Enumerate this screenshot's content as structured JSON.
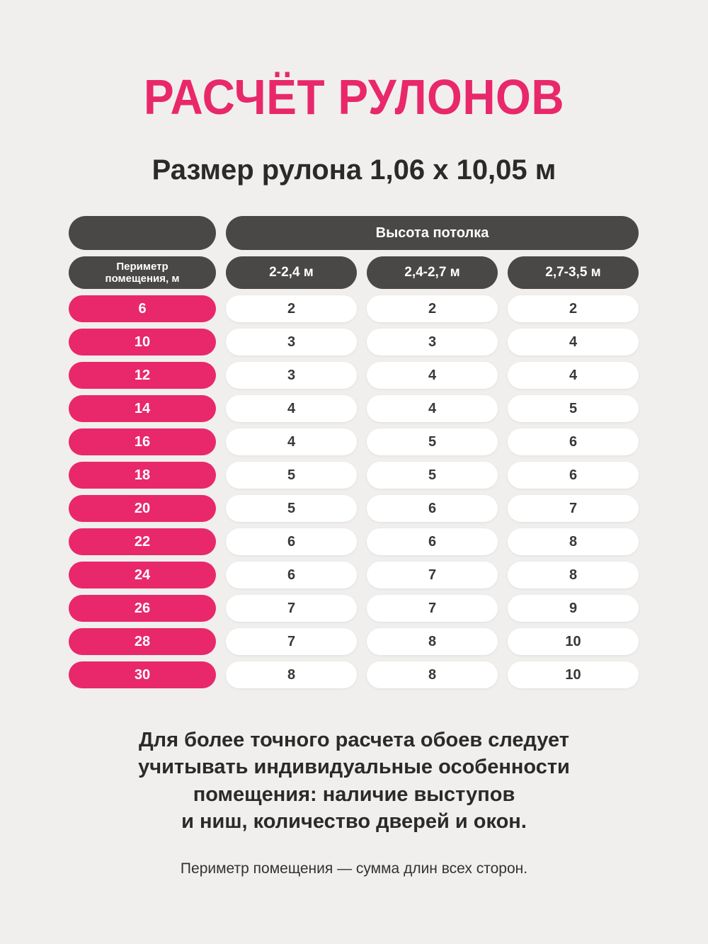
{
  "page": {
    "title": "РАСЧЁТ РУЛОНОВ",
    "subtitle": "Размер рулона 1,06 х 10,05 м"
  },
  "table": {
    "ceiling_header": "Высота потолка",
    "perimeter_header_lines": [
      "Периметр",
      "помещения, м"
    ],
    "column_headers": [
      "2-2,4 м",
      "2,4-2,7 м",
      "2,7-3,5 м"
    ],
    "rows": [
      {
        "perimeter": "6",
        "values": [
          "2",
          "2",
          "2"
        ]
      },
      {
        "perimeter": "10",
        "values": [
          "3",
          "3",
          "4"
        ]
      },
      {
        "perimeter": "12",
        "values": [
          "3",
          "4",
          "4"
        ]
      },
      {
        "perimeter": "14",
        "values": [
          "4",
          "4",
          "5"
        ]
      },
      {
        "perimeter": "16",
        "values": [
          "4",
          "5",
          "6"
        ]
      },
      {
        "perimeter": "18",
        "values": [
          "5",
          "5",
          "6"
        ]
      },
      {
        "perimeter": "20",
        "values": [
          "5",
          "6",
          "7"
        ]
      },
      {
        "perimeter": "22",
        "values": [
          "6",
          "6",
          "8"
        ]
      },
      {
        "perimeter": "24",
        "values": [
          "6",
          "7",
          "8"
        ]
      },
      {
        "perimeter": "26",
        "values": [
          "7",
          "7",
          "9"
        ]
      },
      {
        "perimeter": "28",
        "values": [
          "7",
          "8",
          "10"
        ]
      },
      {
        "perimeter": "30",
        "values": [
          "8",
          "8",
          "10"
        ]
      }
    ]
  },
  "footer": {
    "note_lines": [
      "Для более точного расчета обоев следует",
      "учитывать индивидуальные особенности",
      "помещения: наличие выступов",
      "и ниш, количество дверей и окон."
    ],
    "hint": "Периметр помещения — сумма длин всех сторон."
  },
  "colors": {
    "accent_pink": "#e8286a",
    "dark_pill": "#4a4846",
    "background": "#f1efed"
  },
  "chart_data": {
    "type": "table",
    "title": "РАСЧЁТ РУЛОНОВ",
    "subtitle": "Размер рулона 1,06 х 10,05 м",
    "column_group": "Высота потолка",
    "columns": [
      "Периметр помещения, м",
      "2-2,4 м",
      "2,4-2,7 м",
      "2,7-3,5 м"
    ],
    "rows": [
      [
        6,
        2,
        2,
        2
      ],
      [
        10,
        3,
        3,
        4
      ],
      [
        12,
        3,
        4,
        4
      ],
      [
        14,
        4,
        4,
        5
      ],
      [
        16,
        4,
        5,
        6
      ],
      [
        18,
        5,
        5,
        6
      ],
      [
        20,
        5,
        6,
        7
      ],
      [
        22,
        6,
        6,
        8
      ],
      [
        24,
        6,
        7,
        8
      ],
      [
        26,
        7,
        7,
        9
      ],
      [
        28,
        7,
        8,
        10
      ],
      [
        30,
        8,
        8,
        10
      ]
    ]
  }
}
